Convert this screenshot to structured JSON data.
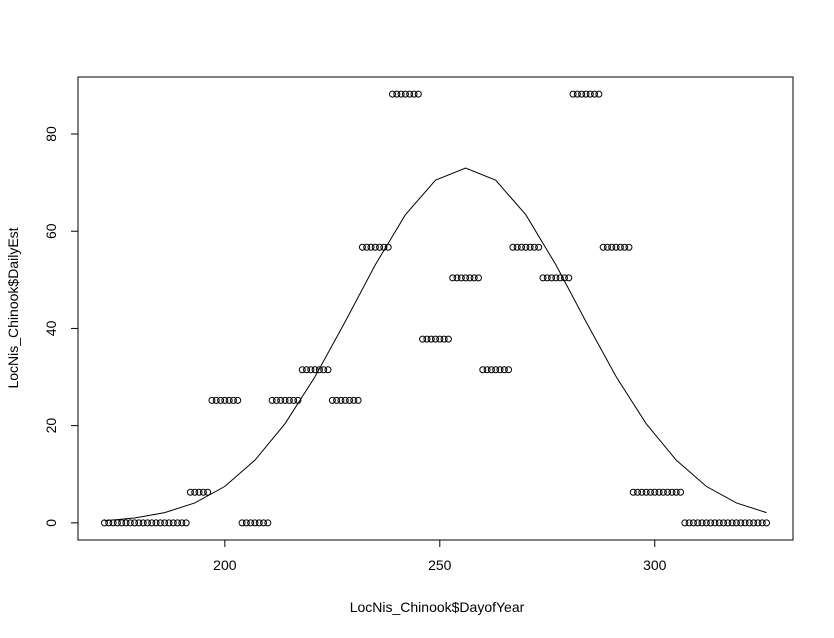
{
  "chart_data": {
    "type": "scatter",
    "xlabel": "LocNis_Chinook$DayofYear",
    "ylabel": "LocNis_Chinook$DailyEst",
    "xlim": [
      165.84,
      332.16
    ],
    "xticks": [
      200,
      250,
      300
    ],
    "ylim": [
      -3.53,
      91.73
    ],
    "yticks": [
      0,
      20,
      40,
      60,
      80
    ],
    "series": [
      {
        "type": "scatter",
        "color": "#000000",
        "x": [
          172,
          173,
          174,
          175,
          176,
          177,
          178,
          179,
          180,
          181,
          182,
          183,
          184,
          185,
          186,
          187,
          188,
          189,
          190,
          191,
          192,
          193,
          194,
          195,
          196,
          197,
          198,
          199,
          200,
          201,
          202,
          203,
          204,
          205,
          206,
          207,
          208,
          209,
          210,
          211,
          212,
          213,
          214,
          215,
          216,
          217,
          218,
          219,
          220,
          221,
          222,
          223,
          224,
          225,
          226,
          227,
          228,
          229,
          230,
          231,
          232,
          233,
          234,
          235,
          236,
          237,
          238,
          239,
          240,
          241,
          242,
          243,
          244,
          245,
          246,
          247,
          248,
          249,
          250,
          251,
          252,
          253,
          254,
          255,
          256,
          257,
          258,
          259,
          260,
          261,
          262,
          263,
          264,
          265,
          266,
          267,
          268,
          269,
          270,
          271,
          272,
          273,
          274,
          275,
          276,
          277,
          278,
          279,
          280,
          281,
          282,
          283,
          284,
          285,
          286,
          287,
          288,
          289,
          290,
          291,
          292,
          293,
          294,
          295,
          296,
          297,
          298,
          299,
          300,
          301,
          302,
          303,
          304,
          305,
          306,
          307,
          308,
          309,
          310,
          311,
          312,
          313,
          314,
          315,
          316,
          317,
          318,
          319,
          320,
          321,
          322,
          323,
          324,
          325,
          326
        ],
        "values": [
          0,
          0,
          0,
          0,
          0,
          0,
          0,
          0,
          0,
          0,
          0,
          0,
          0,
          0,
          0,
          0,
          0,
          0,
          0,
          0,
          6.3,
          6.3,
          6.3,
          6.3,
          6.3,
          25.2,
          25.2,
          25.2,
          25.2,
          25.2,
          25.2,
          25.2,
          0,
          0,
          0,
          0,
          0,
          0,
          0,
          25.2,
          25.2,
          25.2,
          25.2,
          25.2,
          25.2,
          25.2,
          31.5,
          31.5,
          31.5,
          31.5,
          31.5,
          31.5,
          31.5,
          25.2,
          25.2,
          25.2,
          25.2,
          25.2,
          25.2,
          25.2,
          56.7,
          56.7,
          56.7,
          56.7,
          56.7,
          56.7,
          56.7,
          88.2,
          88.2,
          88.2,
          88.2,
          88.2,
          88.2,
          88.2,
          37.8,
          37.8,
          37.8,
          37.8,
          37.8,
          37.8,
          37.8,
          50.4,
          50.4,
          50.4,
          50.4,
          50.4,
          50.4,
          50.4,
          31.5,
          31.5,
          31.5,
          31.5,
          31.5,
          31.5,
          31.5,
          56.7,
          56.7,
          56.7,
          56.7,
          56.7,
          56.7,
          56.7,
          50.4,
          50.4,
          50.4,
          50.4,
          50.4,
          50.4,
          50.4,
          88.2,
          88.2,
          88.2,
          88.2,
          88.2,
          88.2,
          88.2,
          56.7,
          56.7,
          56.7,
          56.7,
          56.7,
          56.7,
          56.7,
          6.3,
          6.3,
          6.3,
          6.3,
          6.3,
          6.3,
          6.3,
          6.3,
          6.3,
          6.3,
          6.3,
          6.3,
          0,
          0,
          0,
          0,
          0,
          0,
          0,
          0,
          0,
          0,
          0,
          0,
          0,
          0,
          0,
          0,
          0,
          0,
          0,
          0
        ]
      },
      {
        "type": "line",
        "color": "#000000",
        "x": [
          172,
          179,
          186,
          193,
          200,
          207,
          214,
          221,
          228,
          235,
          242,
          249,
          256,
          263,
          270,
          277,
          284,
          291,
          298,
          305,
          312,
          319,
          326
        ],
        "values": [
          0.44,
          1.0,
          2.1,
          4.1,
          7.5,
          12.9,
          20.4,
          30.1,
          41.4,
          53.1,
          63.4,
          70.5,
          73.0,
          70.5,
          63.4,
          53.1,
          41.4,
          30.1,
          20.4,
          12.9,
          7.5,
          4.1,
          2.1
        ]
      }
    ]
  }
}
